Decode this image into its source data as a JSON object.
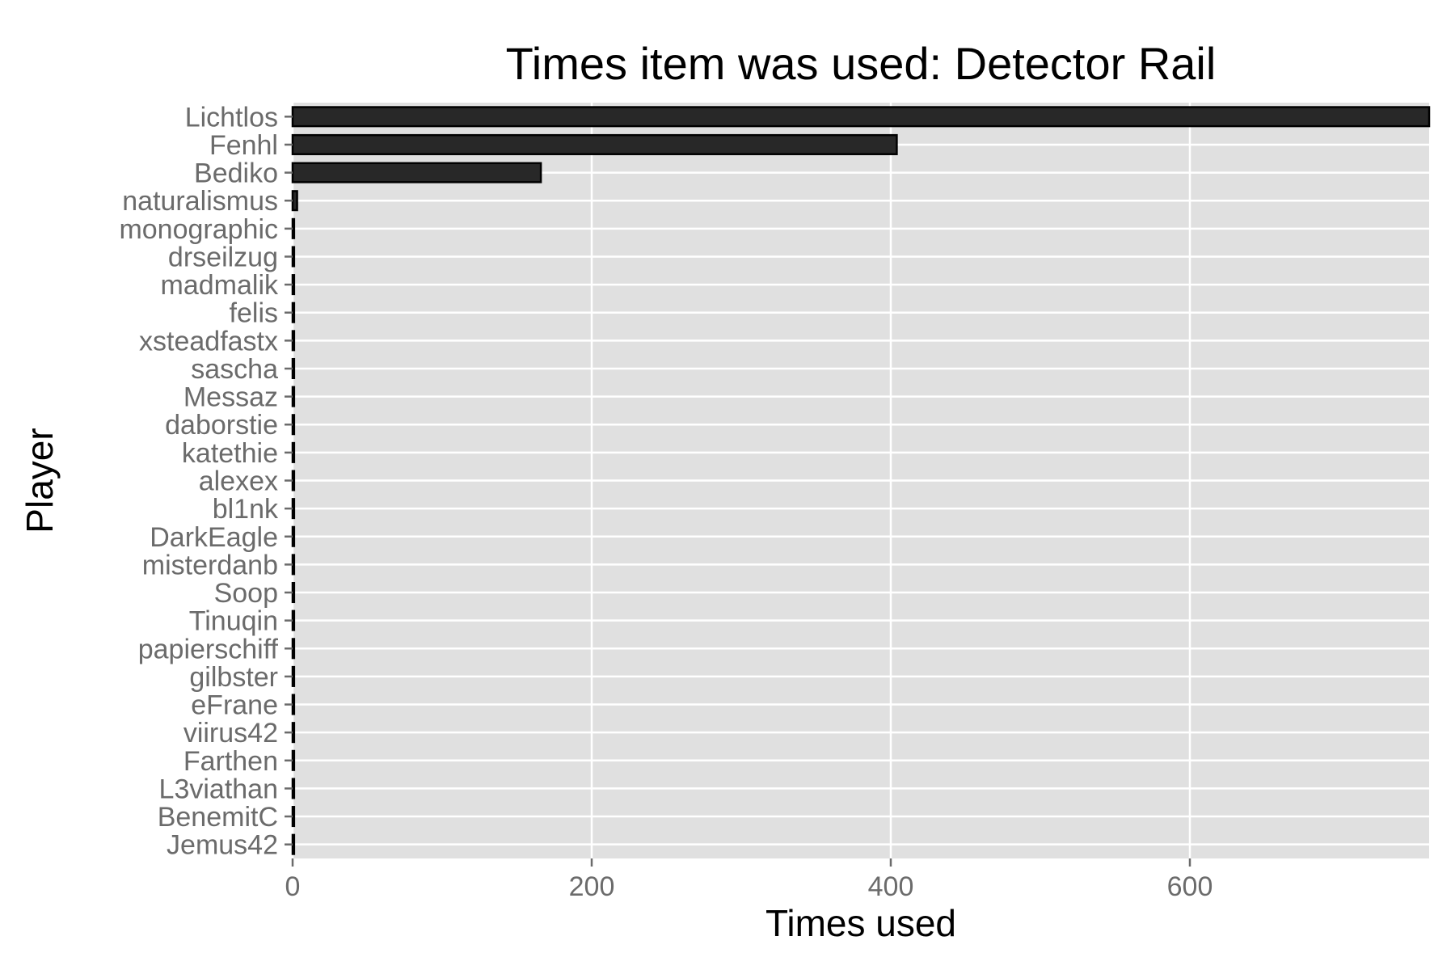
{
  "chart_data": {
    "type": "bar",
    "orientation": "horizontal",
    "title": "Times item was used: Detector Rail",
    "xlabel": "Times used",
    "ylabel": "Player",
    "categories": [
      "Lichtlos",
      "Fenhl",
      "Bediko",
      "naturalismus",
      "monographic",
      "drseilzug",
      "madmalik",
      "felis",
      "xsteadfastx",
      "sascha",
      "Messaz",
      "daborstie",
      "katethie",
      "alexex",
      "bl1nk",
      "DarkEagle",
      "misterdanb",
      "Soop",
      "Tinuqin",
      "papierschiff",
      "gilbster",
      "eFrane",
      "viirus42",
      "Farthen",
      "L3viathan",
      "BenemitC",
      "Jemus42"
    ],
    "values": [
      760,
      404,
      166,
      3,
      1,
      1,
      1,
      1,
      1,
      1,
      1,
      1,
      1,
      1,
      1,
      1,
      1,
      1,
      1,
      1,
      1,
      1,
      1,
      1,
      1,
      1,
      1
    ],
    "xticks": [
      "0",
      "200",
      "400",
      "600"
    ],
    "xlim": [
      0,
      760
    ],
    "grid": true,
    "legend": "none",
    "colors": {
      "panel": "#e0e0e0",
      "grid": "#ffffff",
      "bar_fill": "#282828",
      "bar_stroke": "#000000",
      "tick_text": "#6b6b6b",
      "tick_mark": "#6b6b6b"
    }
  }
}
